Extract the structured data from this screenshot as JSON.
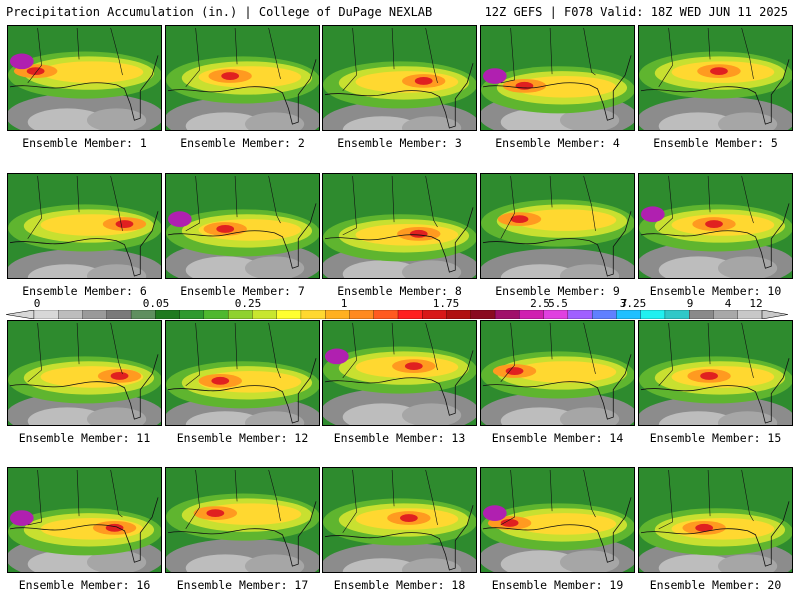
{
  "header": {
    "left": "Precipitation Accumulation (in.) | College of DuPage NEXLAB",
    "right": "12Z GEFS | F078 Valid: 18Z WED JUN 11 2025"
  },
  "colorbar": {
    "labels": [
      "0",
      "0.05",
      "0.25",
      "1",
      "1.75",
      "2.5",
      "3.25",
      "4",
      "5.5",
      "7",
      "9",
      "12"
    ],
    "colors": [
      "#d8d8d8",
      "#bdbdbd",
      "#9a9a9a",
      "#7a7a7a",
      "#5f8f5f",
      "#1f7a1f",
      "#2f9a2f",
      "#4fb82f",
      "#8fd22f",
      "#c8e62f",
      "#ffff30",
      "#ffd830",
      "#ffb020",
      "#ff8a20",
      "#ff5a20",
      "#ff2020",
      "#d81818",
      "#b01010",
      "#8a0a20",
      "#a0106a",
      "#d020b0",
      "#e040e0",
      "#a060ff",
      "#6080ff",
      "#20c0ff",
      "#20f0f0",
      "#30c8c8",
      "#8a8a8a",
      "#a8a8a8",
      "#c8c8c8"
    ]
  },
  "panels": [
    {
      "label": "Ensemble Member: 1"
    },
    {
      "label": "Ensemble Member: 2"
    },
    {
      "label": "Ensemble Member: 3"
    },
    {
      "label": "Ensemble Member: 4"
    },
    {
      "label": "Ensemble Member: 5"
    },
    {
      "label": "Ensemble Member: 6"
    },
    {
      "label": "Ensemble Member: 7"
    },
    {
      "label": "Ensemble Member: 8"
    },
    {
      "label": "Ensemble Member: 9"
    },
    {
      "label": "Ensemble Member: 10"
    },
    {
      "label": "Ensemble Member: 11"
    },
    {
      "label": "Ensemble Member: 12"
    },
    {
      "label": "Ensemble Member: 13"
    },
    {
      "label": "Ensemble Member: 14"
    },
    {
      "label": "Ensemble Member: 15"
    },
    {
      "label": "Ensemble Member: 16"
    },
    {
      "label": "Ensemble Member: 17"
    },
    {
      "label": "Ensemble Member: 18"
    },
    {
      "label": "Ensemble Member: 19"
    },
    {
      "label": "Ensemble Member: 20"
    }
  ]
}
